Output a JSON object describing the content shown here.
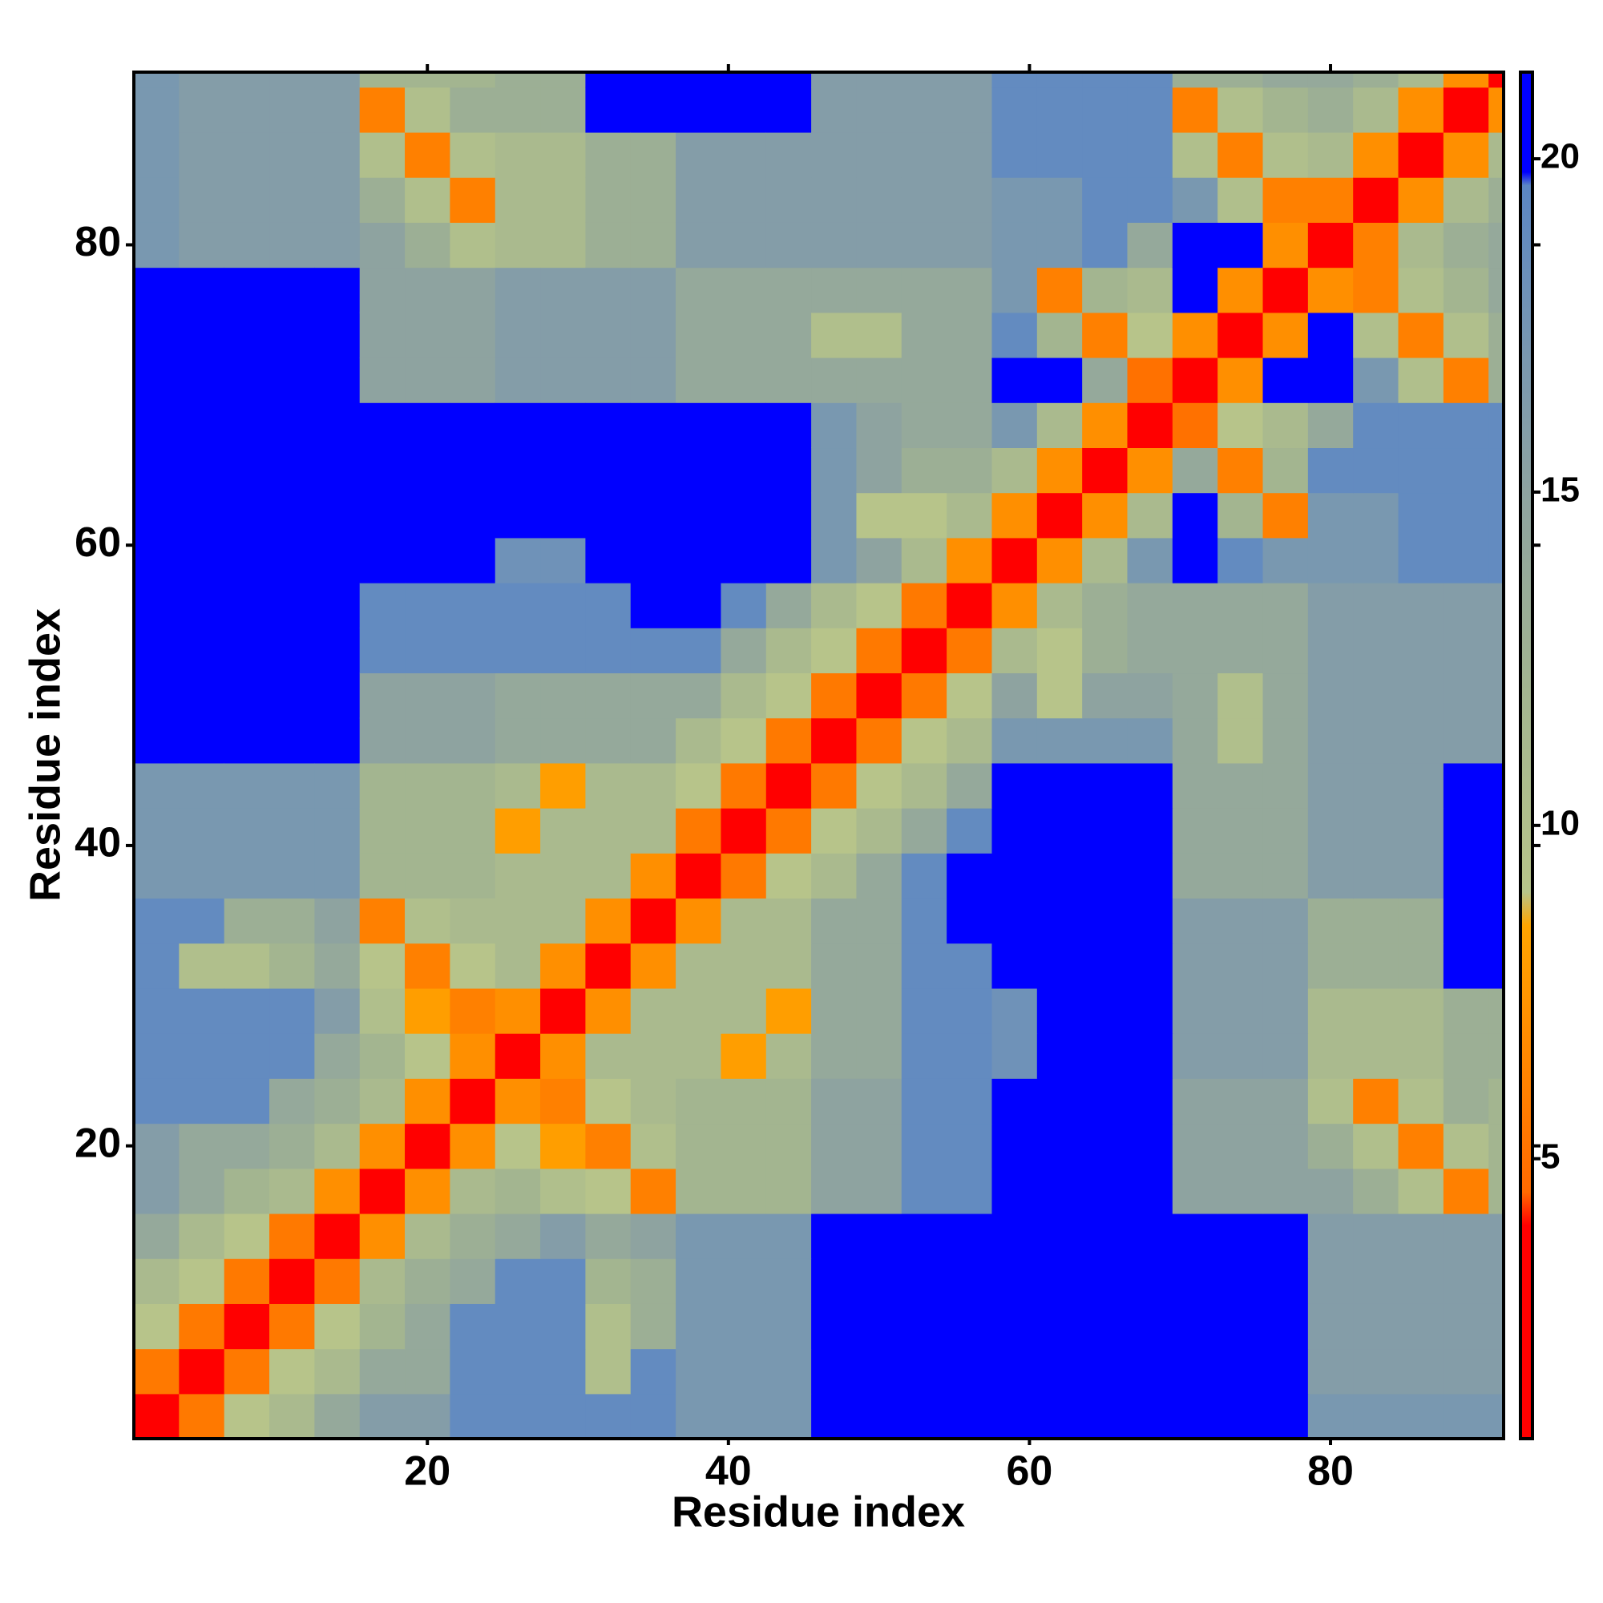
{
  "chart_data": {
    "type": "heatmap",
    "xlabel": "Residue index",
    "ylabel": "Residue index",
    "xlim": [
      0.5,
      91.5
    ],
    "ylim": [
      0.5,
      91.5
    ],
    "xticks": [
      20,
      40,
      60,
      80
    ],
    "yticks": [
      20,
      40,
      60,
      80
    ],
    "bins": [
      0.5,
      3.5,
      6.5,
      9.5,
      12.5,
      15.5,
      18.5,
      21.5,
      24.5,
      27.5,
      30.5,
      33.5,
      36.5,
      39.5,
      42.5,
      45.5,
      48.5,
      51.5,
      54.5,
      57.5,
      60.5,
      63.5,
      66.5,
      69.5,
      72.5,
      75.5,
      78.5,
      81.5,
      84.5,
      87.5,
      90.5,
      91.5
    ],
    "z": [
      [
        3.5,
        5.5,
        9,
        11,
        14,
        16,
        16,
        19,
        19,
        19,
        19,
        19,
        17,
        17,
        17,
        20,
        20,
        20,
        20,
        21,
        21,
        21,
        21,
        20,
        20,
        20,
        17,
        17,
        17,
        17,
        17
      ],
      [
        3.5,
        5.5,
        9,
        11,
        14,
        14,
        19,
        19,
        19,
        10,
        19,
        17,
        17,
        17,
        20,
        20,
        20,
        20,
        21,
        21,
        21,
        21,
        20,
        20,
        20,
        16,
        16,
        16,
        16,
        16
      ],
      [
        3.5,
        5.5,
        9,
        12,
        14,
        19,
        19,
        19,
        10,
        13,
        17,
        17,
        17,
        20,
        20,
        20,
        20,
        21,
        21,
        21,
        21,
        20,
        20,
        20,
        16,
        16,
        16,
        16,
        16
      ],
      [
        3.5,
        5.5,
        11,
        13,
        14,
        19,
        19,
        12,
        13,
        17,
        17,
        17,
        20,
        20,
        20,
        20,
        21,
        21,
        21,
        21,
        20,
        20,
        20,
        16,
        16,
        16,
        16,
        16
      ],
      [
        3.5,
        7,
        11,
        13,
        14,
        16,
        14,
        15,
        17,
        17,
        17,
        20,
        20,
        20,
        20,
        21,
        21,
        21,
        21,
        20,
        20,
        20,
        16,
        16,
        16,
        16,
        16
      ],
      [
        3.5,
        7,
        11,
        12,
        10,
        9,
        6,
        12,
        12,
        12,
        15,
        15,
        19,
        19,
        20,
        20,
        20,
        20,
        15,
        15,
        15,
        15,
        13,
        10,
        6,
        12
      ],
      [
        3.5,
        7,
        9,
        8,
        6,
        10,
        12,
        12,
        12,
        15,
        15,
        19,
        19,
        20,
        20,
        20,
        20,
        15,
        15,
        15,
        13,
        10,
        6,
        10,
        12
      ],
      [
        3.5,
        7,
        6,
        9,
        11,
        12,
        12,
        12,
        15,
        15,
        19,
        19,
        20,
        20,
        20,
        20,
        15,
        15,
        15,
        10,
        6,
        10,
        13,
        12
      ],
      [
        3.5,
        7,
        11,
        11,
        11,
        8,
        11,
        14,
        14,
        19,
        19,
        18,
        21,
        21,
        21,
        16,
        16,
        16,
        11,
        11,
        11,
        13,
        13
      ],
      [
        3.5,
        7,
        11,
        11,
        11,
        8,
        14,
        14,
        19,
        19,
        18,
        21,
        21,
        21,
        16,
        16,
        16,
        11,
        11,
        11,
        13,
        13
      ],
      [
        3.5,
        7,
        11,
        11,
        11,
        14,
        14,
        19,
        19,
        21,
        21,
        21,
        21,
        16,
        16,
        16,
        13,
        13,
        13,
        20,
        20
      ],
      [
        3.5,
        7,
        11,
        11,
        14,
        14,
        19,
        21,
        21,
        21,
        21,
        21,
        16,
        16,
        16,
        13,
        13,
        13,
        20,
        20
      ],
      [
        3.5,
        5.5,
        9,
        11,
        14,
        19,
        21,
        21,
        21,
        21,
        21,
        14,
        14,
        14,
        16,
        16,
        16,
        20,
        20
      ],
      [
        3.5,
        5.5,
        9,
        11,
        14,
        19,
        21,
        21,
        21,
        21,
        14,
        14,
        14,
        16,
        16,
        16,
        20,
        20
      ],
      [
        3.5,
        5.5,
        9,
        11,
        14,
        21,
        21,
        21,
        21,
        14,
        14,
        14,
        16,
        16,
        16,
        20,
        20
      ],
      [
        3.5,
        5.5,
        9,
        11,
        17,
        17,
        17,
        17,
        14,
        10,
        14,
        16,
        16,
        16,
        16,
        16
      ],
      [
        3.5,
        5.5,
        9,
        15,
        9,
        15,
        15,
        14,
        10,
        14,
        16,
        16,
        16,
        16,
        16
      ],
      [
        3.5,
        5.5,
        11,
        9,
        13,
        14,
        14,
        14,
        14,
        16,
        16,
        16,
        16,
        16
      ],
      [
        3.5,
        7,
        11,
        13,
        14,
        14,
        14,
        14,
        16,
        16,
        16,
        16,
        16
      ],
      [
        3.5,
        7,
        11,
        17,
        21,
        19,
        17,
        17,
        17,
        19,
        19,
        19
      ],
      [
        3.5,
        7,
        11,
        21,
        12,
        6,
        17,
        17,
        19,
        19,
        19
      ],
      [
        3.5,
        7,
        14,
        6,
        12,
        19,
        19,
        19,
        19,
        19
      ],
      [
        3.5,
        5,
        9,
        11,
        14,
        19,
        19,
        19,
        19
      ],
      [
        3.5,
        7,
        20,
        21,
        17,
        10,
        6,
        13
      ],
      [
        3.5,
        7,
        21,
        10,
        6,
        10,
        13
      ],
      [
        3.5,
        7,
        6,
        10,
        12,
        14
      ],
      [
        3.5,
        6,
        11,
        13,
        14
      ],
      [
        3.5,
        7,
        11,
        13
      ],
      [
        3.5,
        7,
        11
      ],
      [
        3.5,
        7
      ],
      [
        3.5
      ]
    ],
    "colorbar": {
      "lim": [
        0.8,
        21.3
      ],
      "ticks": [
        5,
        10,
        15,
        20
      ],
      "colorscale": [
        {
          "value": 0.8,
          "color": "#ff0000"
        },
        {
          "value": 4,
          "color": "#ff0000"
        },
        {
          "value": 4.5,
          "color": "#ff6a00"
        },
        {
          "value": 8.5,
          "color": "#ffa500"
        },
        {
          "value": 9,
          "color": "#b7c48a"
        },
        {
          "value": 12,
          "color": "#a3b590"
        },
        {
          "value": 15,
          "color": "#8ea3a0"
        },
        {
          "value": 18,
          "color": "#6f92b8"
        },
        {
          "value": 19.6,
          "color": "#5b86c4"
        },
        {
          "value": 19.8,
          "color": "#0000ff"
        },
        {
          "value": 21.3,
          "color": "#0000ff"
        }
      ]
    }
  }
}
